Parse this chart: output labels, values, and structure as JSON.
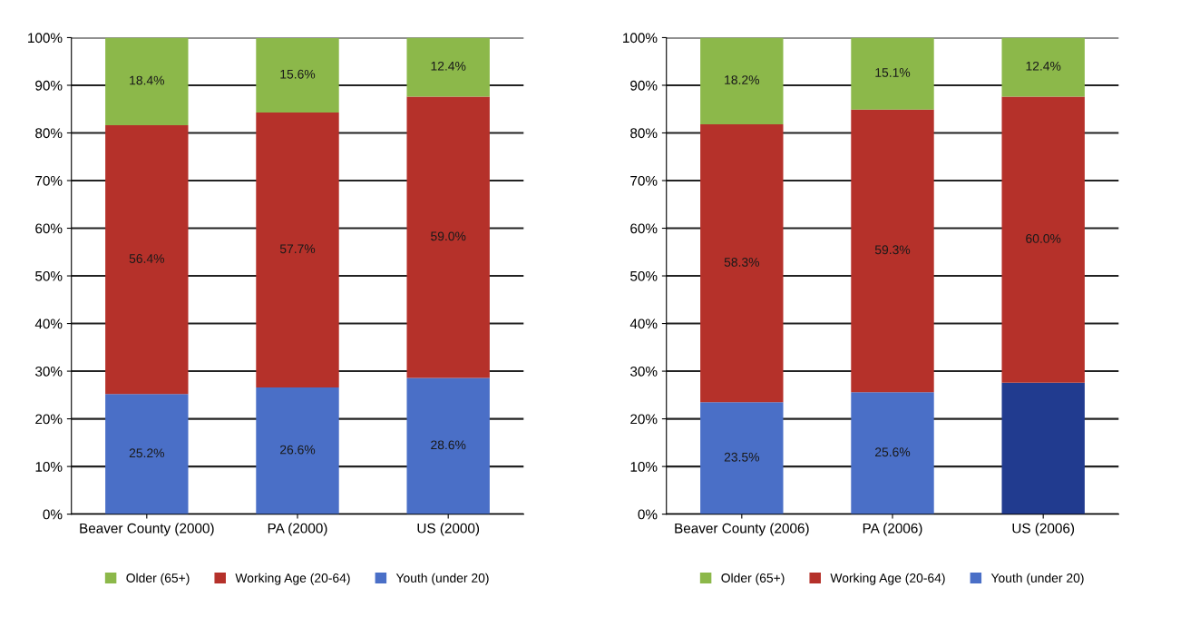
{
  "chart_data": [
    {
      "type": "bar",
      "stacked": true,
      "categories": [
        "Beaver County (2000)",
        "PA (2000)",
        "US (2000)"
      ],
      "ylim": [
        0,
        100
      ],
      "yticks": [
        {
          "value": 0,
          "label": "0%"
        },
        {
          "value": 10,
          "label": "10%"
        },
        {
          "value": 20,
          "label": "20%"
        },
        {
          "value": 30,
          "label": "30%"
        },
        {
          "value": 40,
          "label": "40%"
        },
        {
          "value": 50,
          "label": "50%"
        },
        {
          "value": 60,
          "label": "60%"
        },
        {
          "value": 70,
          "label": "70%"
        },
        {
          "value": 80,
          "label": "80%"
        },
        {
          "value": 90,
          "label": "90%"
        },
        {
          "value": 100,
          "label": "100%"
        }
      ],
      "grid": "y",
      "legend": "bottom",
      "series": [
        {
          "name": "Youth (under 20)",
          "color": "#4a6fc7",
          "values": [
            25.2,
            26.6,
            28.6
          ],
          "value_labels": [
            "25.2%",
            "26.6%",
            "28.6%"
          ]
        },
        {
          "name": "Working Age (20-64)",
          "color": "#b5312a",
          "values": [
            56.4,
            57.7,
            59.0
          ],
          "value_labels": [
            "56.4%",
            "57.7%",
            "59.0%"
          ]
        },
        {
          "name": "Older (65+)",
          "color": "#8cb84a",
          "values": [
            18.4,
            15.6,
            12.4
          ],
          "value_labels": [
            "18.4%",
            "15.6%",
            "12.4%"
          ]
        }
      ]
    },
    {
      "type": "bar",
      "stacked": true,
      "categories": [
        "Beaver County (2006)",
        "PA (2006)",
        "US (2006)"
      ],
      "ylim": [
        0,
        100
      ],
      "yticks": [
        {
          "value": 0,
          "label": "0%"
        },
        {
          "value": 10,
          "label": "10%"
        },
        {
          "value": 20,
          "label": "20%"
        },
        {
          "value": 30,
          "label": "30%"
        },
        {
          "value": 40,
          "label": "40%"
        },
        {
          "value": 50,
          "label": "50%"
        },
        {
          "value": 60,
          "label": "60%"
        },
        {
          "value": 70,
          "label": "70%"
        },
        {
          "value": 80,
          "label": "80%"
        },
        {
          "value": 90,
          "label": "90%"
        },
        {
          "value": 100,
          "label": "100%"
        }
      ],
      "grid": "y",
      "legend": "bottom",
      "series": [
        {
          "name": "Youth (under 20)",
          "color": "#4a6fc7",
          "colors": [
            "#4a6fc7",
            "#4a6fc7",
            "#213b8f"
          ],
          "values": [
            23.5,
            25.6,
            27.6
          ],
          "value_labels": [
            "23.5%",
            "25.6%",
            null
          ]
        },
        {
          "name": "Working Age (20-64)",
          "color": "#b5312a",
          "values": [
            58.3,
            59.3,
            60.0
          ],
          "value_labels": [
            "58.3%",
            "59.3%",
            "60.0%"
          ]
        },
        {
          "name": "Older (65+)",
          "color": "#8cb84a",
          "values": [
            18.2,
            15.1,
            12.4
          ],
          "value_labels": [
            "18.2%",
            "15.1%",
            "12.4%"
          ]
        }
      ]
    }
  ]
}
